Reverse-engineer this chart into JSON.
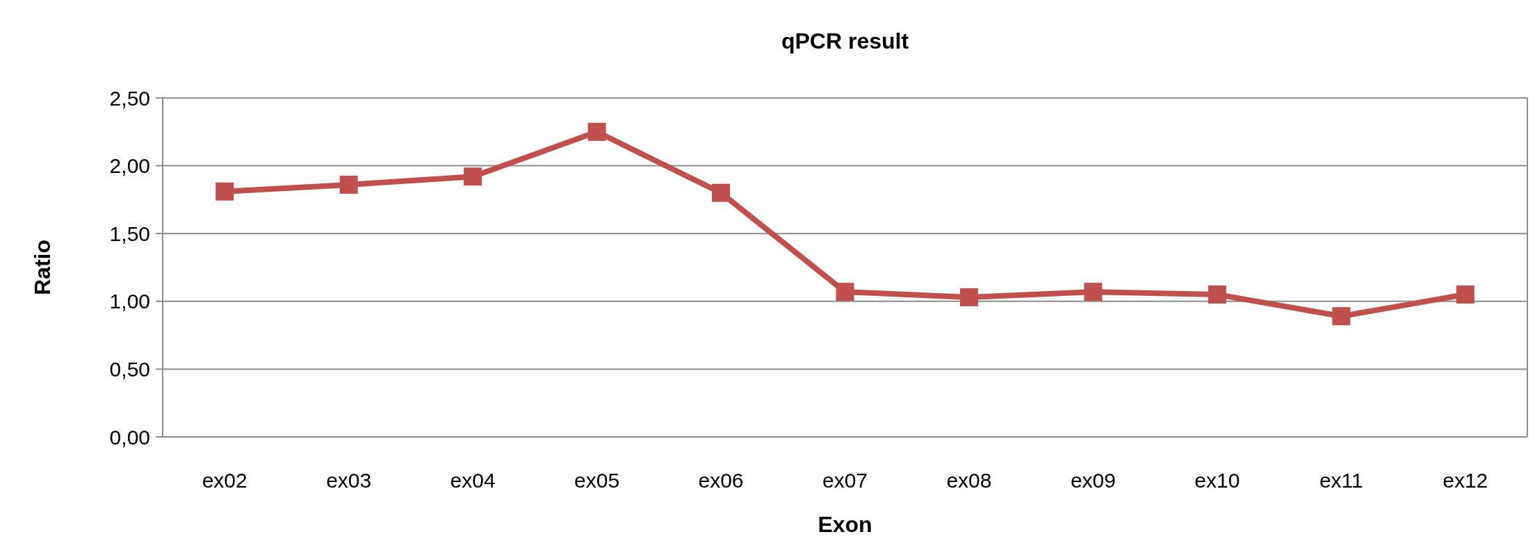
{
  "chart_data": {
    "type": "line",
    "title": "qPCR result",
    "xlabel": "Exon",
    "ylabel": "Ratio",
    "categories": [
      "ex02",
      "ex03",
      "ex04",
      "ex05",
      "ex06",
      "ex07",
      "ex08",
      "ex09",
      "ex10",
      "ex11",
      "ex12"
    ],
    "series": [
      {
        "color": "#c0504d",
        "values": [
          1.81,
          1.86,
          1.92,
          2.25,
          1.8,
          1.07,
          1.03,
          1.07,
          1.05,
          0.89,
          1.05
        ]
      }
    ],
    "ylim": [
      0,
      2.5
    ],
    "yticks": [
      {
        "value": 0,
        "label": "0,00"
      },
      {
        "value": 0.5,
        "label": "0,50"
      },
      {
        "value": 1,
        "label": "1,00"
      },
      {
        "value": 1.5,
        "label": "1,50"
      },
      {
        "value": 2,
        "label": "2,00"
      },
      {
        "value": 2.5,
        "label": "2,50"
      }
    ],
    "grid": "y",
    "marker": "square",
    "line_style": "solid"
  }
}
